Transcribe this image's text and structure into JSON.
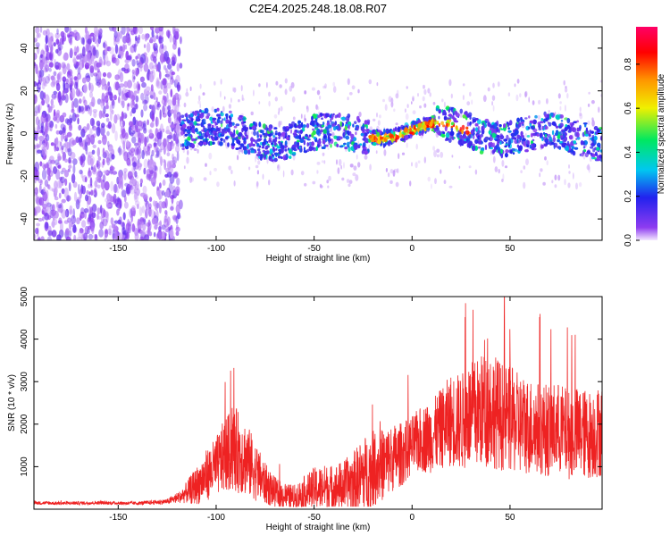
{
  "title": "C2E4.2025.248.18.08.R07",
  "colors": {
    "snr_line": "#ee2222",
    "axis": "#000000",
    "background": "#ffffff"
  },
  "chart_data": [
    {
      "type": "heatmap",
      "name": "spectrogram",
      "xlabel": "Height of straight line (km)",
      "ylabel": "Frequency (Hz)",
      "xlim": [
        -193,
        97
      ],
      "ylim": [
        -50,
        50
      ],
      "x_ticks": [
        -150,
        -100,
        -50,
        0,
        50
      ],
      "y_ticks": [
        -40,
        -20,
        0,
        20,
        40
      ],
      "colorbar": {
        "label": "Normalized spectral amplitude",
        "range": [
          0,
          0.97
        ],
        "ticks": [
          0.0,
          0.2,
          0.4,
          0.6,
          0.8
        ],
        "colormap": [
          "#f4e8ff",
          "#8e3cf0",
          "#2222ee",
          "#00c8f0",
          "#00e860",
          "#f0f000",
          "#ff9600",
          "#ff0000",
          "#ff0066"
        ]
      },
      "regions": [
        {
          "x_range": [
            -193,
            -118
          ],
          "description": "broadband noise",
          "amplitude": 0.05
        },
        {
          "x_range": [
            -118,
            97
          ],
          "center_freq_hz": 0,
          "description": "signal band",
          "amplitude_peak": 0.9
        }
      ]
    },
    {
      "type": "line",
      "name": "snr",
      "xlabel": "Height of straight line (km)",
      "ylabel": "SNR (10 * v/v)",
      "xlim": [
        -193,
        97
      ],
      "ylim": [
        0,
        5000
      ],
      "x_ticks": [
        -150,
        -100,
        -50,
        0,
        50
      ],
      "y_ticks": [
        1000,
        2000,
        3000,
        4000,
        5000
      ],
      "x": [
        -193,
        -180,
        -160,
        -140,
        -125,
        -118,
        -110,
        -105,
        -100,
        -95,
        -90,
        -85,
        -80,
        -75,
        -70,
        -65,
        -60,
        -55,
        -50,
        -45,
        -40,
        -35,
        -30,
        -25,
        -20,
        -15,
        -10,
        -5,
        0,
        5,
        10,
        15,
        20,
        25,
        30,
        35,
        40,
        45,
        50,
        55,
        60,
        65,
        70,
        75,
        80,
        85,
        90,
        97
      ],
      "y": [
        150,
        140,
        150,
        140,
        180,
        300,
        550,
        800,
        1000,
        1300,
        1400,
        1200,
        900,
        600,
        400,
        300,
        280,
        380,
        480,
        500,
        500,
        550,
        650,
        800,
        950,
        1050,
        1200,
        1300,
        1500,
        1650,
        1700,
        1900,
        2100,
        2050,
        2200,
        2300,
        2400,
        2200,
        2100,
        2000,
        1950,
        1900,
        1850,
        1900,
        1750,
        1800,
        1750,
        1850
      ],
      "spread": [
        40,
        40,
        40,
        40,
        60,
        150,
        450,
        600,
        700,
        900,
        1000,
        900,
        700,
        500,
        350,
        300,
        300,
        400,
        500,
        550,
        550,
        600,
        700,
        900,
        900,
        850,
        800,
        750,
        700,
        800,
        850,
        950,
        1100,
        1150,
        1250,
        1350,
        1400,
        1300,
        1250,
        1200,
        1150,
        1100,
        1100,
        1100,
        1050,
        1100,
        1050,
        1100
      ]
    }
  ]
}
